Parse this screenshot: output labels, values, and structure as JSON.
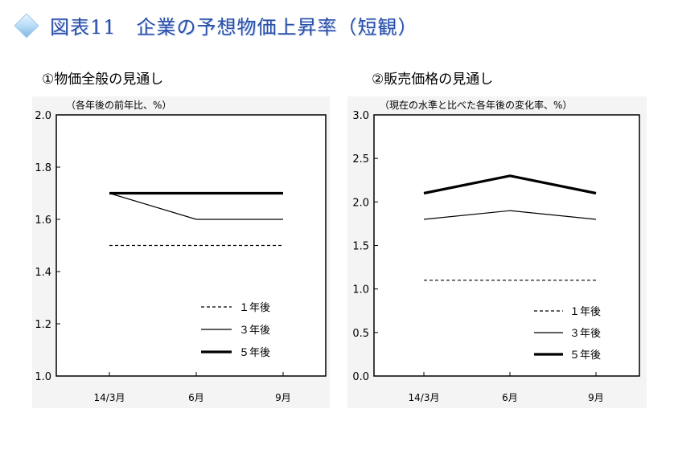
{
  "header": {
    "title": "図表11　企業の予想物価上昇率（短観）",
    "icon": "diamond-icon"
  },
  "chart_data": [
    {
      "type": "line",
      "title": "①物価全般の見通し",
      "ylabel": "（各年後の前年比、%）",
      "categories": [
        "14/3月",
        "6月",
        "9月"
      ],
      "ylim": [
        1.0,
        2.0
      ],
      "yticks": [
        "1.0",
        "1.2",
        "1.4",
        "1.6",
        "1.8",
        "2.0"
      ],
      "series": [
        {
          "name": "１年後",
          "values": [
            1.5,
            1.5,
            1.5
          ],
          "style": "dashed"
        },
        {
          "name": "３年後",
          "values": [
            1.7,
            1.6,
            1.6
          ],
          "style": "thin"
        },
        {
          "name": "５年後",
          "values": [
            1.7,
            1.7,
            1.7
          ],
          "style": "thick"
        }
      ],
      "legend": "bottom-right",
      "grid": false
    },
    {
      "type": "line",
      "title": "②販売価格の見通し",
      "ylabel": "（現在の水準と比べた各年後の変化率、%）",
      "categories": [
        "14/3月",
        "6月",
        "9月"
      ],
      "ylim": [
        0.0,
        3.0
      ],
      "yticks": [
        "0.0",
        "0.5",
        "1.0",
        "1.5",
        "2.0",
        "2.5",
        "3.0"
      ],
      "series": [
        {
          "name": "１年後",
          "values": [
            1.1,
            1.1,
            1.1
          ],
          "style": "dashed"
        },
        {
          "name": "３年後",
          "values": [
            1.8,
            1.9,
            1.8
          ],
          "style": "thin"
        },
        {
          "name": "５年後",
          "values": [
            2.1,
            2.3,
            2.1
          ],
          "style": "thick"
        }
      ],
      "legend": "bottom-right",
      "grid": false
    }
  ]
}
